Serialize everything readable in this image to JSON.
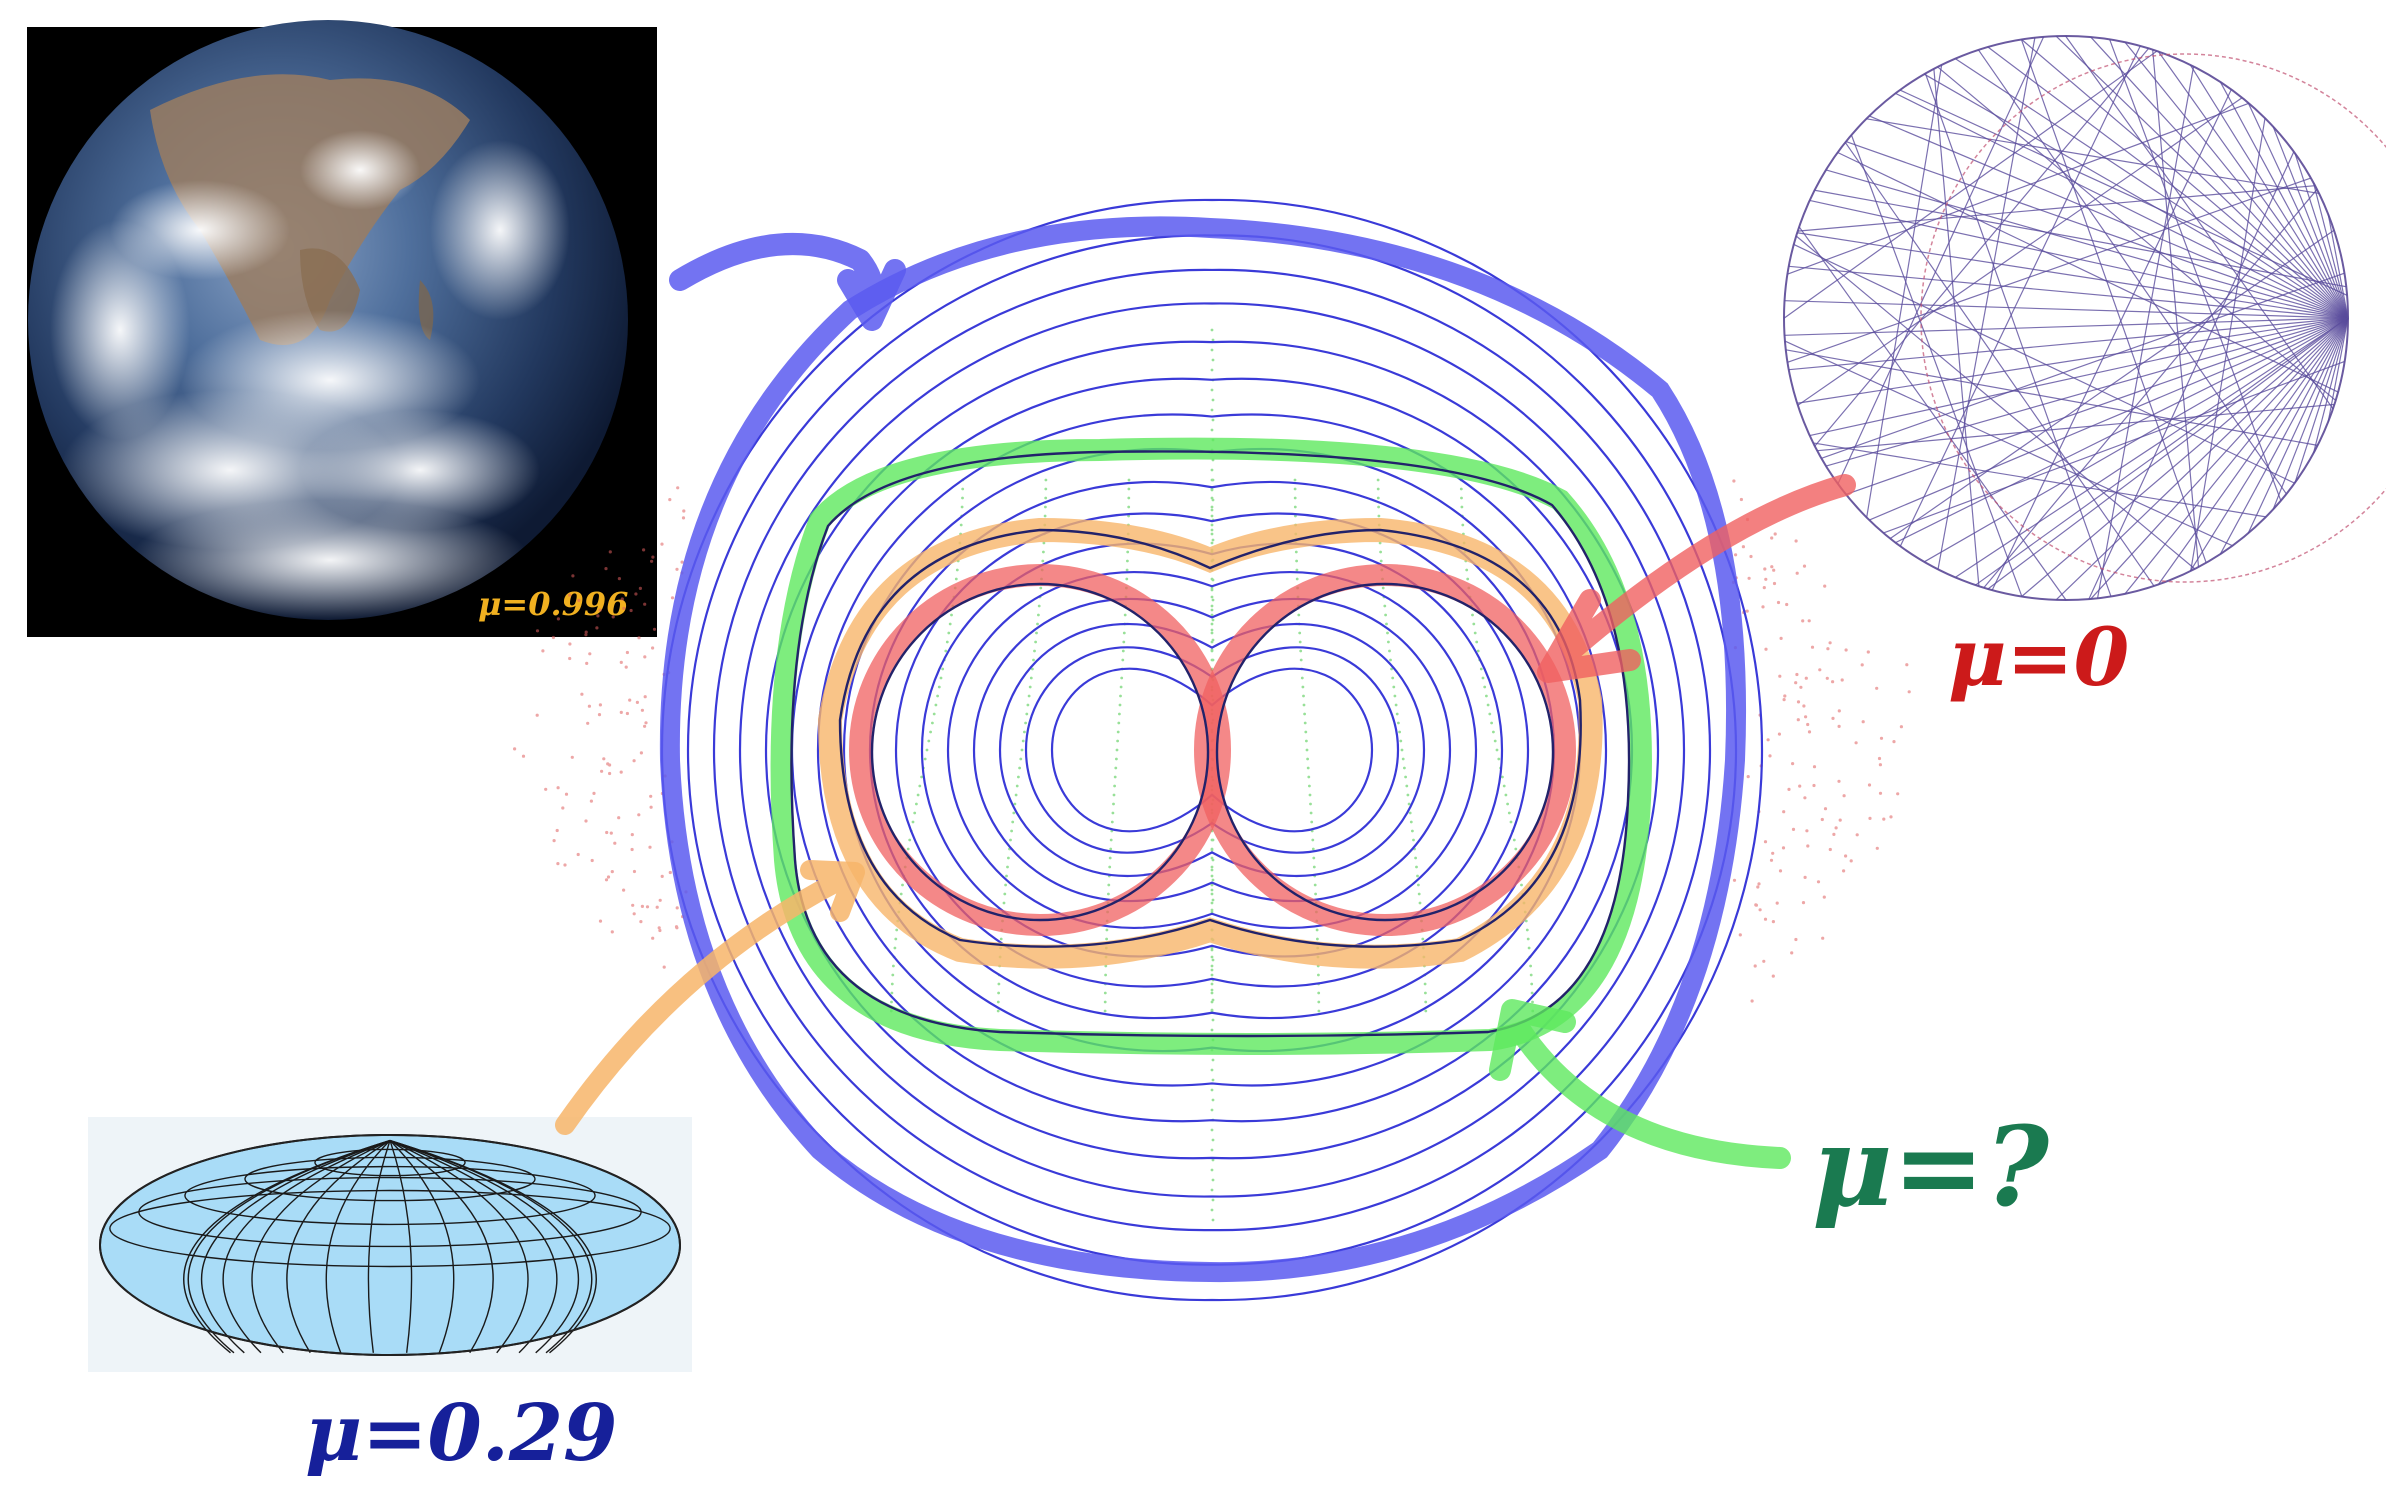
{
  "labels": {
    "earth": "μ=0.996",
    "chords": "μ=0",
    "spheroid": "μ=0.29",
    "unknown": "μ=?"
  },
  "colors": {
    "blue_contour": "#3a3ad8",
    "dark_contour": "#22226a",
    "blue_highlight": "#5a5af0",
    "green_highlight": "#5ee85e",
    "orange_highlight": "#f7b56a",
    "red_highlight": "#f06060",
    "earth_label": "#f0b020",
    "chords_label": "#cc1a1a",
    "spheroid_label": "#16209a",
    "unknown_label": "#1a7a50",
    "spheroid_fill": "#a9dcf7"
  },
  "icons": {
    "earth": "earth-photo",
    "chords": "circle-chord-diagram",
    "spheroid": "oblate-spheroid-grid"
  }
}
